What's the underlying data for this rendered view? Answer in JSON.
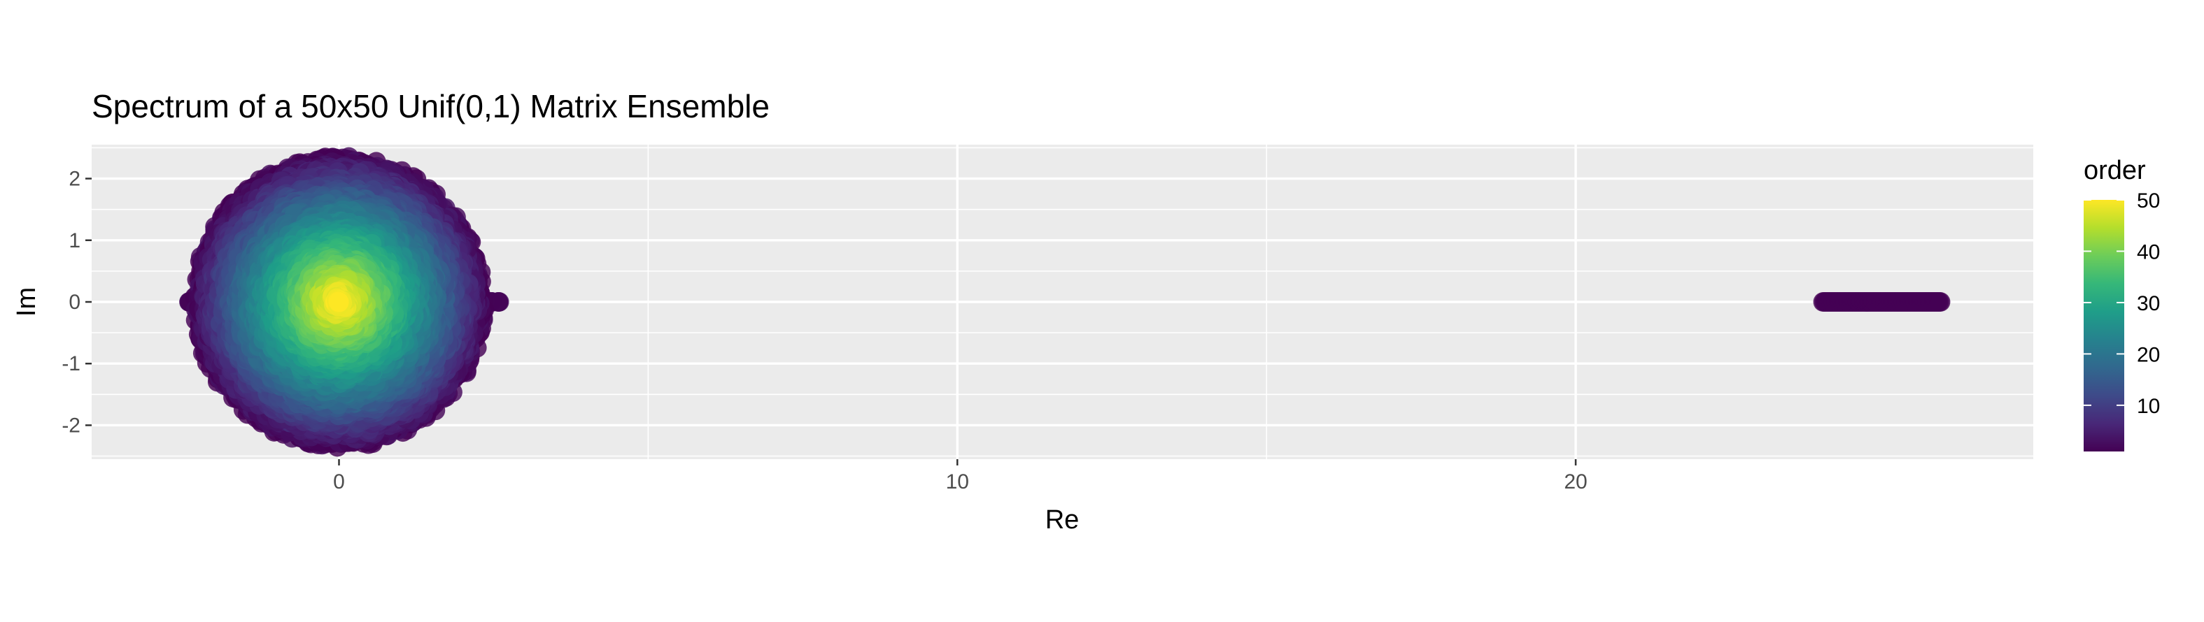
{
  "chart_data": {
    "type": "scatter",
    "title": "Spectrum of a 50x50 Unif(0,1) Matrix Ensemble",
    "xlabel": "Re",
    "ylabel": "Im",
    "xlim": [
      -4.0,
      27.4
    ],
    "ylim": [
      -2.55,
      2.55
    ],
    "x_ticks": [
      0,
      10,
      20
    ],
    "x_tick_labels": [
      "0",
      "10",
      "20"
    ],
    "x_minor_ticks": [
      5,
      15
    ],
    "y_ticks": [
      -2,
      -1,
      0,
      1,
      2
    ],
    "y_tick_labels": [
      "-2",
      "-1",
      "0",
      "1",
      "2"
    ],
    "grid": true,
    "color_variable": "order",
    "color_range": [
      1,
      50
    ],
    "legend": {
      "title": "order",
      "ticks": [
        10,
        20,
        30,
        40,
        50
      ],
      "tick_labels": [
        "10",
        "20",
        "30",
        "40",
        "50"
      ],
      "placement": "right"
    },
    "colors": {
      "palette": [
        "#440154",
        "#482878",
        "#3E4A89",
        "#31688E",
        "#26828E",
        "#1F9E89",
        "#35B779",
        "#6DCD59",
        "#B4DE2C",
        "#FDE725"
      ],
      "panel_background": "#EBEBEB",
      "grid": "#FFFFFF"
    },
    "clusters": [
      {
        "name": "bulk eigenvalues",
        "shape": "disc",
        "center": [
          0,
          0
        ],
        "radius": 2.3,
        "real_axis_range": [
          -2.55,
          2.6
        ],
        "order_range": [
          1,
          50
        ]
      },
      {
        "name": "outlier eigenvalues",
        "shape": "segment",
        "re_range": [
          24.0,
          25.9
        ],
        "im": 0,
        "order": 1
      }
    ]
  }
}
